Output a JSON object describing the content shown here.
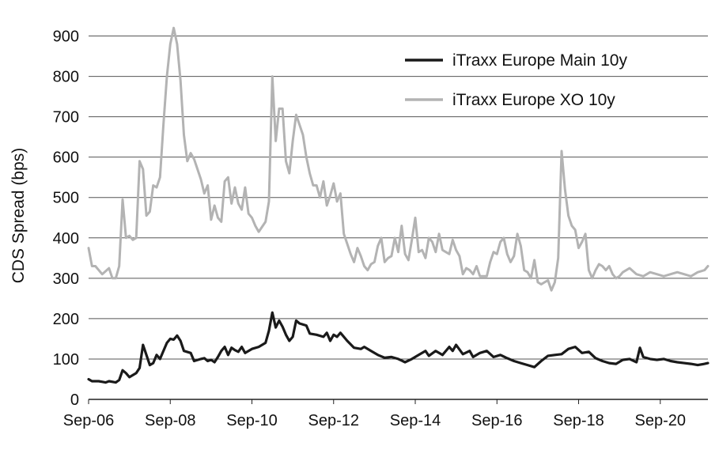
{
  "chart_data": {
    "type": "line",
    "ylabel": "CDS Spread (bps)",
    "xlabel": "",
    "ylim": [
      0,
      950
    ],
    "yticks": [
      0,
      100,
      200,
      300,
      400,
      500,
      600,
      700,
      800,
      900
    ],
    "xlim": [
      "2006-09",
      "2021-11"
    ],
    "xticks": [
      "Sep-06",
      "Sep-08",
      "Sep-10",
      "Sep-12",
      "Sep-14",
      "Sep-16",
      "Sep-18",
      "Sep-20"
    ],
    "grid": "horizontal",
    "legend_position": "top-right",
    "series": [
      {
        "name": "iTraxx Europe Main 10y",
        "color": "#1a1a1a",
        "points": [
          [
            "2006-09",
            50
          ],
          [
            "2006-10",
            45
          ],
          [
            "2006-12",
            45
          ],
          [
            "2007-02",
            42
          ],
          [
            "2007-03",
            45
          ],
          [
            "2007-05",
            42
          ],
          [
            "2007-06",
            48
          ],
          [
            "2007-07",
            72
          ],
          [
            "2007-08",
            65
          ],
          [
            "2007-09",
            55
          ],
          [
            "2007-11",
            65
          ],
          [
            "2007-12",
            78
          ],
          [
            "2008-01",
            135
          ],
          [
            "2008-02",
            110
          ],
          [
            "2008-03",
            85
          ],
          [
            "2008-04",
            90
          ],
          [
            "2008-05",
            110
          ],
          [
            "2008-06",
            100
          ],
          [
            "2008-07",
            120
          ],
          [
            "2008-08",
            140
          ],
          [
            "2008-09",
            150
          ],
          [
            "2008-10",
            148
          ],
          [
            "2008-11",
            158
          ],
          [
            "2008-12",
            145
          ],
          [
            "2009-01",
            120
          ],
          [
            "2009-03",
            115
          ],
          [
            "2009-04",
            95
          ],
          [
            "2009-06",
            100
          ],
          [
            "2009-07",
            102
          ],
          [
            "2009-08",
            95
          ],
          [
            "2009-09",
            98
          ],
          [
            "2009-10",
            92
          ],
          [
            "2009-11",
            105
          ],
          [
            "2009-12",
            120
          ],
          [
            "2010-01",
            130
          ],
          [
            "2010-02",
            110
          ],
          [
            "2010-03",
            128
          ],
          [
            "2010-04",
            122
          ],
          [
            "2010-05",
            118
          ],
          [
            "2010-06",
            130
          ],
          [
            "2010-07",
            115
          ],
          [
            "2010-09",
            125
          ],
          [
            "2010-11",
            130
          ],
          [
            "2011-01",
            140
          ],
          [
            "2011-02",
            170
          ],
          [
            "2011-03",
            215
          ],
          [
            "2011-04",
            178
          ],
          [
            "2011-05",
            195
          ],
          [
            "2011-06",
            180
          ],
          [
            "2011-07",
            160
          ],
          [
            "2011-08",
            145
          ],
          [
            "2011-09",
            155
          ],
          [
            "2011-10",
            195
          ],
          [
            "2011-11",
            188
          ],
          [
            "2012-01",
            183
          ],
          [
            "2012-02",
            163
          ],
          [
            "2012-04",
            160
          ],
          [
            "2012-06",
            155
          ],
          [
            "2012-07",
            165
          ],
          [
            "2012-08",
            145
          ],
          [
            "2012-09",
            160
          ],
          [
            "2012-10",
            155
          ],
          [
            "2012-11",
            165
          ],
          [
            "2013-01",
            145
          ],
          [
            "2013-03",
            128
          ],
          [
            "2013-05",
            125
          ],
          [
            "2013-06",
            130
          ],
          [
            "2013-08",
            120
          ],
          [
            "2013-10",
            110
          ],
          [
            "2013-12",
            103
          ],
          [
            "2014-02",
            105
          ],
          [
            "2014-04",
            100
          ],
          [
            "2014-06",
            92
          ],
          [
            "2014-08",
            100
          ],
          [
            "2014-10",
            110
          ],
          [
            "2014-12",
            120
          ],
          [
            "2015-01",
            108
          ],
          [
            "2015-03",
            120
          ],
          [
            "2015-05",
            110
          ],
          [
            "2015-07",
            130
          ],
          [
            "2015-08",
            120
          ],
          [
            "2015-09",
            135
          ],
          [
            "2015-11",
            112
          ],
          [
            "2016-01",
            120
          ],
          [
            "2016-02",
            105
          ],
          [
            "2016-04",
            115
          ],
          [
            "2016-06",
            120
          ],
          [
            "2016-08",
            105
          ],
          [
            "2016-10",
            110
          ],
          [
            "2016-12",
            102
          ],
          [
            "2017-02",
            95
          ],
          [
            "2017-04",
            90
          ],
          [
            "2017-06",
            85
          ],
          [
            "2017-08",
            80
          ],
          [
            "2017-10",
            95
          ],
          [
            "2017-12",
            108
          ],
          [
            "2018-02",
            110
          ],
          [
            "2018-04",
            112
          ],
          [
            "2018-06",
            125
          ],
          [
            "2018-08",
            130
          ],
          [
            "2018-10",
            115
          ],
          [
            "2018-12",
            118
          ],
          [
            "2019-02",
            102
          ],
          [
            "2019-04",
            95
          ],
          [
            "2019-06",
            90
          ],
          [
            "2019-08",
            88
          ],
          [
            "2019-10",
            98
          ],
          [
            "2019-12",
            100
          ],
          [
            "2020-02",
            92
          ],
          [
            "2020-03",
            128
          ],
          [
            "2020-04",
            105
          ],
          [
            "2020-06",
            100
          ],
          [
            "2020-08",
            98
          ],
          [
            "2020-10",
            100
          ],
          [
            "2020-12",
            95
          ],
          [
            "2021-02",
            92
          ],
          [
            "2021-04",
            90
          ],
          [
            "2021-06",
            88
          ],
          [
            "2021-08",
            85
          ],
          [
            "2021-10",
            88
          ],
          [
            "2021-11",
            90
          ]
        ]
      },
      {
        "name": "iTraxx Europe XO 10y",
        "color": "#b3b3b3",
        "points": [
          [
            "2006-09",
            375
          ],
          [
            "2006-10",
            330
          ],
          [
            "2006-11",
            330
          ],
          [
            "2007-01",
            310
          ],
          [
            "2007-03",
            325
          ],
          [
            "2007-04",
            300
          ],
          [
            "2007-05",
            300
          ],
          [
            "2007-06",
            330
          ],
          [
            "2007-07",
            495
          ],
          [
            "2007-08",
            400
          ],
          [
            "2007-09",
            405
          ],
          [
            "2007-10",
            395
          ],
          [
            "2007-11",
            400
          ],
          [
            "2007-12",
            590
          ],
          [
            "2008-01",
            570
          ],
          [
            "2008-02",
            455
          ],
          [
            "2008-03",
            465
          ],
          [
            "2008-04",
            530
          ],
          [
            "2008-05",
            525
          ],
          [
            "2008-06",
            550
          ],
          [
            "2008-07",
            680
          ],
          [
            "2008-08",
            800
          ],
          [
            "2008-09",
            880
          ],
          [
            "2008-10",
            920
          ],
          [
            "2008-11",
            880
          ],
          [
            "2008-12",
            790
          ],
          [
            "2009-01",
            655
          ],
          [
            "2009-02",
            590
          ],
          [
            "2009-03",
            610
          ],
          [
            "2009-04",
            595
          ],
          [
            "2009-05",
            570
          ],
          [
            "2009-06",
            545
          ],
          [
            "2009-07",
            510
          ],
          [
            "2009-08",
            530
          ],
          [
            "2009-09",
            445
          ],
          [
            "2009-10",
            480
          ],
          [
            "2009-11",
            450
          ],
          [
            "2009-12",
            440
          ],
          [
            "2010-01",
            540
          ],
          [
            "2010-02",
            550
          ],
          [
            "2010-03",
            485
          ],
          [
            "2010-04",
            525
          ],
          [
            "2010-05",
            485
          ],
          [
            "2010-06",
            470
          ],
          [
            "2010-07",
            525
          ],
          [
            "2010-08",
            460
          ],
          [
            "2010-09",
            450
          ],
          [
            "2010-10",
            430
          ],
          [
            "2010-11",
            415
          ],
          [
            "2011-01",
            440
          ],
          [
            "2011-02",
            490
          ],
          [
            "2011-03",
            800
          ],
          [
            "2011-04",
            640
          ],
          [
            "2011-05",
            720
          ],
          [
            "2011-06",
            720
          ],
          [
            "2011-07",
            590
          ],
          [
            "2011-08",
            560
          ],
          [
            "2011-09",
            640
          ],
          [
            "2011-10",
            705
          ],
          [
            "2011-11",
            680
          ],
          [
            "2011-12",
            655
          ],
          [
            "2012-01",
            600
          ],
          [
            "2012-02",
            560
          ],
          [
            "2012-03",
            530
          ],
          [
            "2012-04",
            530
          ],
          [
            "2012-05",
            500
          ],
          [
            "2012-06",
            540
          ],
          [
            "2012-07",
            480
          ],
          [
            "2012-08",
            505
          ],
          [
            "2012-09",
            535
          ],
          [
            "2012-10",
            490
          ],
          [
            "2012-11",
            510
          ],
          [
            "2012-12",
            410
          ],
          [
            "2013-01",
            385
          ],
          [
            "2013-02",
            360
          ],
          [
            "2013-03",
            340
          ],
          [
            "2013-04",
            375
          ],
          [
            "2013-05",
            355
          ],
          [
            "2013-06",
            330
          ],
          [
            "2013-07",
            320
          ],
          [
            "2013-08",
            335
          ],
          [
            "2013-09",
            340
          ],
          [
            "2013-10",
            380
          ],
          [
            "2013-11",
            400
          ],
          [
            "2013-12",
            340
          ],
          [
            "2014-01",
            350
          ],
          [
            "2014-02",
            355
          ],
          [
            "2014-03",
            400
          ],
          [
            "2014-04",
            365
          ],
          [
            "2014-05",
            430
          ],
          [
            "2014-06",
            360
          ],
          [
            "2014-07",
            345
          ],
          [
            "2014-08",
            395
          ],
          [
            "2014-09",
            450
          ],
          [
            "2014-10",
            365
          ],
          [
            "2014-11",
            370
          ],
          [
            "2014-12",
            350
          ],
          [
            "2015-01",
            400
          ],
          [
            "2015-02",
            390
          ],
          [
            "2015-03",
            365
          ],
          [
            "2015-04",
            410
          ],
          [
            "2015-05",
            370
          ],
          [
            "2015-06",
            365
          ],
          [
            "2015-07",
            360
          ],
          [
            "2015-08",
            395
          ],
          [
            "2015-09",
            370
          ],
          [
            "2015-10",
            355
          ],
          [
            "2015-11",
            310
          ],
          [
            "2015-12",
            325
          ],
          [
            "2016-01",
            320
          ],
          [
            "2016-02",
            310
          ],
          [
            "2016-03",
            330
          ],
          [
            "2016-04",
            305
          ],
          [
            "2016-05",
            305
          ],
          [
            "2016-06",
            305
          ],
          [
            "2016-07",
            340
          ],
          [
            "2016-08",
            365
          ],
          [
            "2016-09",
            360
          ],
          [
            "2016-10",
            390
          ],
          [
            "2016-11",
            400
          ],
          [
            "2016-12",
            360
          ],
          [
            "2017-01",
            340
          ],
          [
            "2017-02",
            355
          ],
          [
            "2017-03",
            410
          ],
          [
            "2017-04",
            380
          ],
          [
            "2017-05",
            320
          ],
          [
            "2017-06",
            315
          ],
          [
            "2017-07",
            300
          ],
          [
            "2017-08",
            345
          ],
          [
            "2017-09",
            290
          ],
          [
            "2017-10",
            285
          ],
          [
            "2017-11",
            290
          ],
          [
            "2017-12",
            295
          ],
          [
            "2018-01",
            270
          ],
          [
            "2018-02",
            290
          ],
          [
            "2018-03",
            350
          ],
          [
            "2018-04",
            615
          ],
          [
            "2018-05",
            520
          ],
          [
            "2018-06",
            455
          ],
          [
            "2018-07",
            430
          ],
          [
            "2018-08",
            420
          ],
          [
            "2018-09",
            375
          ],
          [
            "2018-10",
            390
          ],
          [
            "2018-11",
            410
          ],
          [
            "2018-12",
            320
          ],
          [
            "2019-01",
            300
          ],
          [
            "2019-02",
            320
          ],
          [
            "2019-03",
            335
          ],
          [
            "2019-04",
            330
          ],
          [
            "2019-05",
            320
          ],
          [
            "2019-06",
            330
          ],
          [
            "2019-07",
            310
          ],
          [
            "2019-08",
            300
          ],
          [
            "2019-09",
            305
          ],
          [
            "2019-10",
            315
          ],
          [
            "2019-12",
            325
          ],
          [
            "2020-02",
            310
          ],
          [
            "2020-04",
            305
          ],
          [
            "2020-06",
            315
          ],
          [
            "2020-08",
            310
          ],
          [
            "2020-10",
            305
          ],
          [
            "2020-12",
            310
          ],
          [
            "2021-02",
            315
          ],
          [
            "2021-04",
            310
          ],
          [
            "2021-06",
            305
          ],
          [
            "2021-08",
            315
          ],
          [
            "2021-10",
            320
          ],
          [
            "2021-11",
            330
          ]
        ]
      }
    ]
  }
}
